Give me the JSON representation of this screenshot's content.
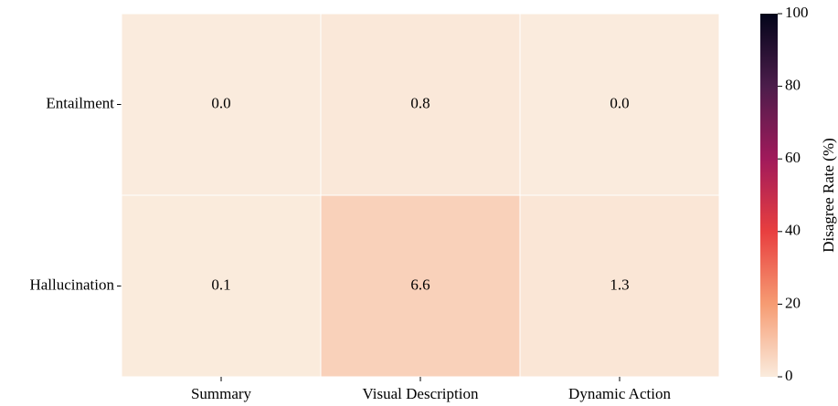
{
  "chart_data": {
    "type": "heatmap",
    "rows": [
      "Entailment",
      "Hallucination"
    ],
    "columns": [
      "Summary",
      "Visual Description",
      "Dynamic Action"
    ],
    "values": [
      [
        0.0,
        0.8,
        0.0
      ],
      [
        0.1,
        6.6,
        1.3
      ]
    ],
    "value_labels": [
      [
        "0.0",
        "0.8",
        "0.0"
      ],
      [
        "0.1",
        "6.6",
        "1.3"
      ]
    ],
    "zlim": [
      0,
      100
    ],
    "zticks": [
      0,
      20,
      40,
      60,
      80,
      100
    ],
    "colorbar_label": "Disagree Rate (%)",
    "colormap": [
      "#faebdd",
      "#f69c73",
      "#e83f3f",
      "#a11a5b",
      "#4c1d4b",
      "#03051a"
    ]
  }
}
